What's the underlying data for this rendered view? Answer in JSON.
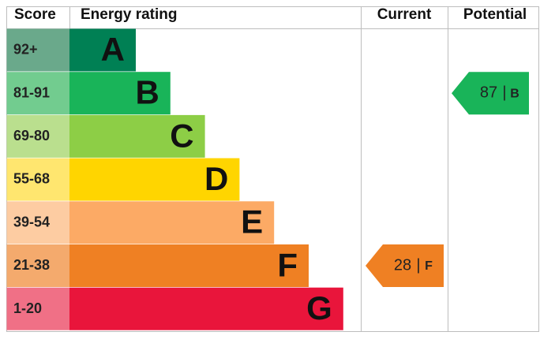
{
  "header": {
    "score": "Score",
    "energy_rating": "Energy rating",
    "current": "Current",
    "potential": "Potential"
  },
  "bands": [
    {
      "score": "92+",
      "letter": "A",
      "color": "#008054",
      "score_color": "#6aa98b"
    },
    {
      "score": "81-91",
      "letter": "B",
      "color": "#19b459",
      "score_color": "#72cc8f"
    },
    {
      "score": "69-80",
      "letter": "C",
      "color": "#8dce46",
      "score_color": "#badf8e"
    },
    {
      "score": "55-68",
      "letter": "D",
      "color": "#ffd500",
      "score_color": "#ffe66f"
    },
    {
      "score": "39-54",
      "letter": "E",
      "color": "#fcaa65",
      "score_color": "#fdcca2"
    },
    {
      "score": "21-38",
      "letter": "F",
      "color": "#ef8023",
      "score_color": "#f4aa6d"
    },
    {
      "score": "1-20",
      "letter": "G",
      "color": "#e9153b",
      "score_color": "#f07086"
    }
  ],
  "current": {
    "value": 28,
    "separator": "|",
    "letter": "F"
  },
  "potential": {
    "value": 87,
    "separator": "|",
    "letter": "B"
  }
}
